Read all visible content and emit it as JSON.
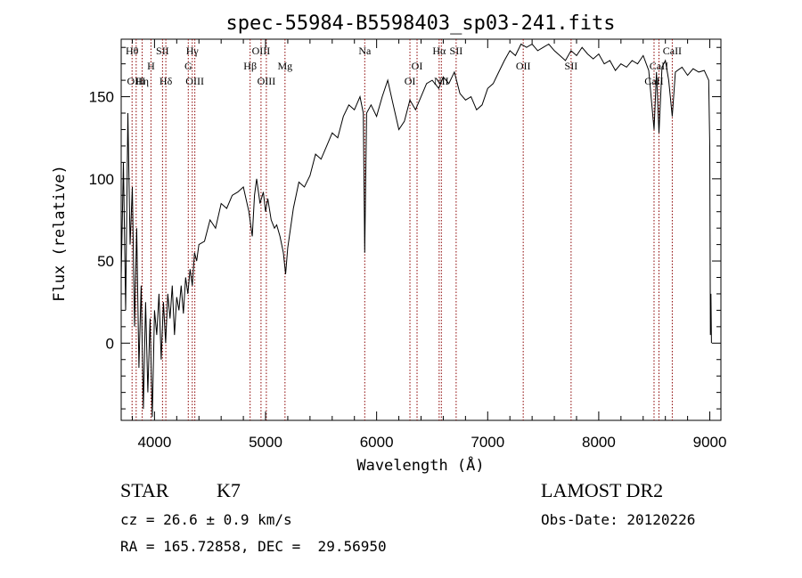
{
  "chart_data": {
    "type": "line",
    "title": "spec-55984-B5598403_sp03-241.fits",
    "xlabel": "Wavelength (Å)",
    "ylabel": "Flux (relative)",
    "xlim": [
      3700,
      9100
    ],
    "ylim": [
      -47,
      185
    ],
    "xticks": [
      4000,
      5000,
      6000,
      7000,
      8000,
      9000
    ],
    "yticks": [
      0,
      50,
      100,
      150
    ],
    "grid": false,
    "line_color": "#000000",
    "marker_color": "#8b0000",
    "series": [
      {
        "values": [
          [
            3700,
            40
          ],
          [
            3720,
            110
          ],
          [
            3740,
            20
          ],
          [
            3760,
            140
          ],
          [
            3780,
            60
          ],
          [
            3800,
            95
          ],
          [
            3820,
            10
          ],
          [
            3840,
            70
          ],
          [
            3860,
            -15
          ],
          [
            3880,
            35
          ],
          [
            3900,
            -40
          ],
          [
            3920,
            25
          ],
          [
            3940,
            -30
          ],
          [
            3960,
            15
          ],
          [
            3980,
            -45
          ],
          [
            4000,
            20
          ],
          [
            4020,
            5
          ],
          [
            4040,
            30
          ],
          [
            4060,
            -10
          ],
          [
            4080,
            25
          ],
          [
            4100,
            0
          ],
          [
            4120,
            30
          ],
          [
            4140,
            15
          ],
          [
            4160,
            35
          ],
          [
            4180,
            5
          ],
          [
            4200,
            28
          ],
          [
            4220,
            20
          ],
          [
            4240,
            35
          ],
          [
            4260,
            18
          ],
          [
            4280,
            40
          ],
          [
            4300,
            30
          ],
          [
            4320,
            45
          ],
          [
            4340,
            35
          ],
          [
            4360,
            55
          ],
          [
            4380,
            50
          ],
          [
            4400,
            60
          ],
          [
            4450,
            62
          ],
          [
            4500,
            75
          ],
          [
            4550,
            70
          ],
          [
            4600,
            85
          ],
          [
            4650,
            82
          ],
          [
            4700,
            90
          ],
          [
            4750,
            92
          ],
          [
            4800,
            95
          ],
          [
            4850,
            80
          ],
          [
            4880,
            65
          ],
          [
            4900,
            90
          ],
          [
            4920,
            100
          ],
          [
            4950,
            85
          ],
          [
            4980,
            92
          ],
          [
            5000,
            80
          ],
          [
            5020,
            88
          ],
          [
            5050,
            75
          ],
          [
            5080,
            70
          ],
          [
            5100,
            72
          ],
          [
            5130,
            65
          ],
          [
            5160,
            55
          ],
          [
            5180,
            42
          ],
          [
            5200,
            58
          ],
          [
            5250,
            82
          ],
          [
            5300,
            98
          ],
          [
            5350,
            95
          ],
          [
            5400,
            102
          ],
          [
            5450,
            115
          ],
          [
            5500,
            112
          ],
          [
            5550,
            120
          ],
          [
            5600,
            128
          ],
          [
            5650,
            125
          ],
          [
            5700,
            138
          ],
          [
            5750,
            145
          ],
          [
            5800,
            142
          ],
          [
            5850,
            150
          ],
          [
            5880,
            140
          ],
          [
            5893,
            55
          ],
          [
            5910,
            140
          ],
          [
            5950,
            145
          ],
          [
            6000,
            138
          ],
          [
            6050,
            150
          ],
          [
            6100,
            160
          ],
          [
            6150,
            145
          ],
          [
            6200,
            130
          ],
          [
            6250,
            135
          ],
          [
            6300,
            148
          ],
          [
            6350,
            142
          ],
          [
            6400,
            150
          ],
          [
            6450,
            158
          ],
          [
            6500,
            160
          ],
          [
            6560,
            155
          ],
          [
            6600,
            162
          ],
          [
            6650,
            158
          ],
          [
            6700,
            165
          ],
          [
            6750,
            152
          ],
          [
            6800,
            148
          ],
          [
            6850,
            150
          ],
          [
            6900,
            142
          ],
          [
            6950,
            145
          ],
          [
            7000,
            155
          ],
          [
            7050,
            158
          ],
          [
            7100,
            165
          ],
          [
            7150,
            172
          ],
          [
            7200,
            178
          ],
          [
            7250,
            175
          ],
          [
            7300,
            182
          ],
          [
            7350,
            180
          ],
          [
            7400,
            182
          ],
          [
            7450,
            178
          ],
          [
            7500,
            180
          ],
          [
            7550,
            182
          ],
          [
            7600,
            178
          ],
          [
            7650,
            175
          ],
          [
            7700,
            172
          ],
          [
            7750,
            178
          ],
          [
            7800,
            175
          ],
          [
            7850,
            180
          ],
          [
            7900,
            176
          ],
          [
            7950,
            173
          ],
          [
            8000,
            176
          ],
          [
            8050,
            170
          ],
          [
            8100,
            172
          ],
          [
            8150,
            166
          ],
          [
            8200,
            170
          ],
          [
            8250,
            168
          ],
          [
            8300,
            172
          ],
          [
            8350,
            170
          ],
          [
            8400,
            175
          ],
          [
            8450,
            166
          ],
          [
            8498,
            130
          ],
          [
            8520,
            165
          ],
          [
            8542,
            128
          ],
          [
            8570,
            168
          ],
          [
            8600,
            172
          ],
          [
            8630,
            160
          ],
          [
            8662,
            138
          ],
          [
            8690,
            165
          ],
          [
            8750,
            168
          ],
          [
            8800,
            163
          ],
          [
            8850,
            167
          ],
          [
            8900,
            165
          ],
          [
            8950,
            166
          ],
          [
            8990,
            160
          ],
          [
            9000,
            120
          ],
          [
            9005,
            5
          ],
          [
            9010,
            30
          ],
          [
            9015,
            0
          ]
        ]
      }
    ],
    "lines": [
      {
        "label": "Hθ",
        "x": 3798,
        "row": 1
      },
      {
        "label": "OIII",
        "x": 3835,
        "row": 3
      },
      {
        "label": "Hη",
        "x": 3889,
        "row": 3
      },
      {
        "label": "H",
        "x": 3968,
        "row": 2
      },
      {
        "label": "SII",
        "x": 4072,
        "row": 1
      },
      {
        "label": "Hδ",
        "x": 4102,
        "row": 3
      },
      {
        "label": "Hγ",
        "x": 4340,
        "row": 1
      },
      {
        "label": "G",
        "x": 4304,
        "row": 2
      },
      {
        "label": "OIII",
        "x": 4363,
        "row": 3
      },
      {
        "label": "Hβ",
        "x": 4861,
        "row": 2
      },
      {
        "label": "OIII",
        "x": 4959,
        "row": 1
      },
      {
        "label": "OIII",
        "x": 5007,
        "row": 3
      },
      {
        "label": "Mg",
        "x": 5175,
        "row": 2
      },
      {
        "label": "Na",
        "x": 5893,
        "row": 1
      },
      {
        "label": "OI",
        "x": 6300,
        "row": 3
      },
      {
        "label": "OI",
        "x": 6364,
        "row": 2
      },
      {
        "label": "Hα",
        "x": 6563,
        "row": 1
      },
      {
        "label": "NII",
        "x": 6583,
        "row": 3
      },
      {
        "label": "SII",
        "x": 6716,
        "row": 1
      },
      {
        "label": "OII",
        "x": 7320,
        "row": 2
      },
      {
        "label": "SII",
        "x": 7751,
        "row": 2
      },
      {
        "label": "CaII",
        "x": 8498,
        "row": 3
      },
      {
        "label": "CaII",
        "x": 8542,
        "row": 2
      },
      {
        "label": "CaII",
        "x": 8662,
        "row": 1
      }
    ]
  },
  "footer": {
    "object_class": "STAR",
    "subclass": "K7",
    "survey": "LAMOST DR2",
    "cz": "cz = 26.6 ± 0.9 km/s",
    "obs_date": "Obs-Date: 20120226",
    "coords": "RA = 165.72858, DEC =  29.56950"
  }
}
